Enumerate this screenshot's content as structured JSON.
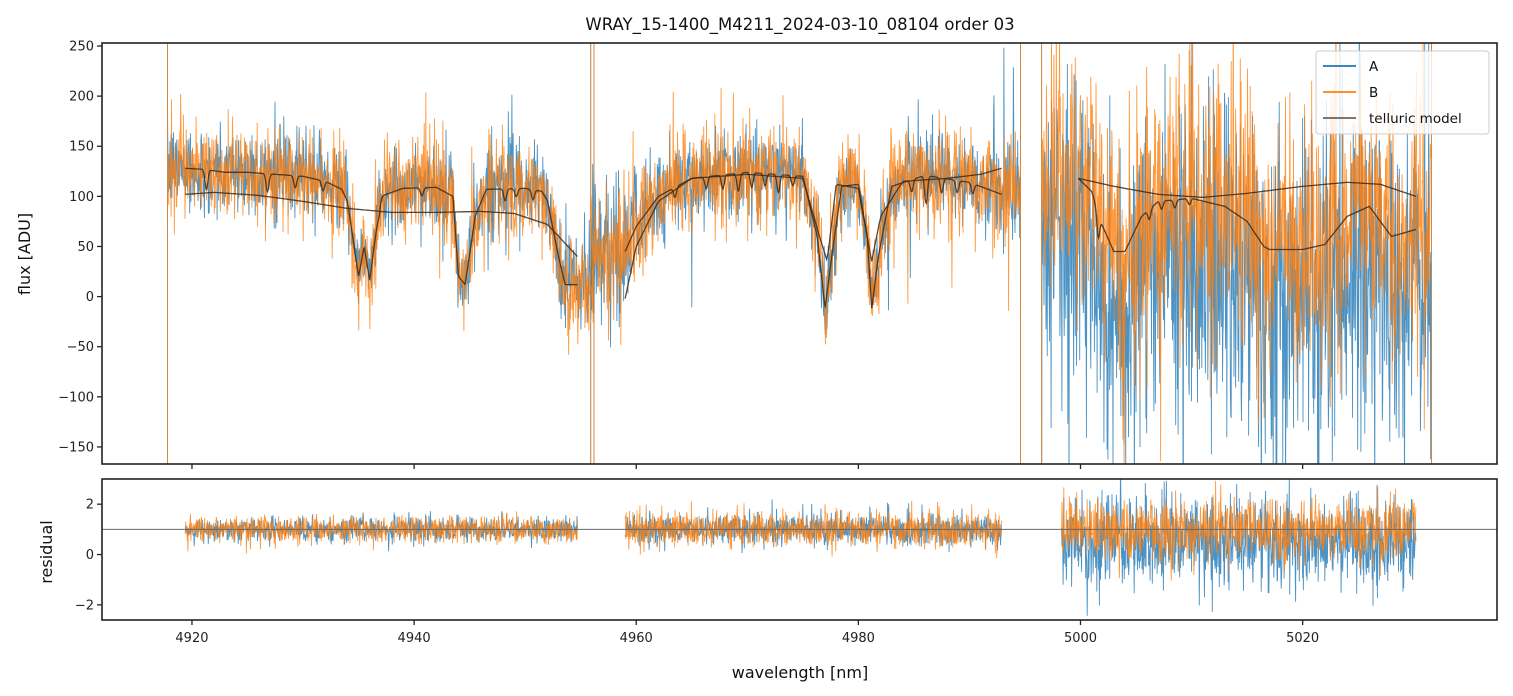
{
  "chart_data": [
    {
      "type": "line",
      "panel": "flux",
      "title": "WRAY_15-1400_M4211_2024-03-10_08104  order 03",
      "xlabel": "",
      "ylabel": "flux [ADU]",
      "xlim": [
        4911.9,
        5037.5
      ],
      "ylim": [
        -167,
        253
      ],
      "yticks": [
        250,
        200,
        150,
        100,
        50,
        0,
        -50,
        -100,
        -150
      ],
      "ytick_labels": [
        "250",
        "200",
        "150",
        "100",
        "50",
        "0",
        "−50",
        "−100",
        "−150"
      ],
      "xticks": [
        4920,
        4940,
        4960,
        4980,
        5000,
        5020
      ],
      "grid": false,
      "legend": {
        "position": "top-right",
        "entries": [
          {
            "label": "A",
            "color": "#1f77b4"
          },
          {
            "label": "B",
            "color": "#ff7f0e"
          },
          {
            "label": "telluric model",
            "color": "#4a3f35"
          }
        ]
      },
      "series": [
        {
          "name": "A",
          "color": "#1f77b4",
          "kind": "noisy spectrum"
        },
        {
          "name": "B",
          "color": "#ff7f0e",
          "kind": "noisy spectrum"
        },
        {
          "name": "telluric model",
          "color": "#3a2a1a",
          "kind": "model"
        }
      ],
      "segments": [
        {
          "x_range": [
            4917.8,
            4956.2
          ],
          "model_x_range": [
            4919.4,
            4954.7
          ],
          "continuum": [
            [
              4919.4,
              102
            ],
            [
              4922,
              104
            ],
            [
              4926,
              101
            ],
            [
              4930,
              95
            ],
            [
              4934,
              88
            ],
            [
              4938,
              84
            ],
            [
              4942,
              84
            ],
            [
              4946,
              85
            ],
            [
              4949,
              83
            ],
            [
              4952,
              72
            ],
            [
              4954.7,
              40
            ]
          ],
          "telluric": [
            [
              4919.4,
              128
            ],
            [
              4921,
              127
            ],
            [
              4923,
              124
            ],
            [
              4925,
              124
            ],
            [
              4930,
              120
            ],
            [
              4932,
              115
            ],
            [
              4933.5,
              107
            ],
            [
              4934,
              95
            ],
            [
              4935,
              20
            ],
            [
              4935.5,
              50
            ],
            [
              4936,
              16
            ],
            [
              4937,
              100
            ],
            [
              4939,
              108
            ],
            [
              4942,
              109
            ],
            [
              4943.5,
              100
            ],
            [
              4944,
              20
            ],
            [
              4944.6,
              12
            ],
            [
              4945.5,
              80
            ],
            [
              4946.5,
              107
            ],
            [
              4950,
              108
            ],
            [
              4951.5,
              105
            ],
            [
              4952,
              96
            ],
            [
              4953,
              40
            ],
            [
              4953.6,
              12
            ],
            [
              4954.7,
              12
            ]
          ],
          "lines": [
            [
              4921.3,
              20
            ],
            [
              4926.8,
              18
            ],
            [
              4929.3,
              12
            ],
            [
              4931.8,
              10
            ],
            [
              4936.9,
              8
            ],
            [
              4940.7,
              8
            ],
            [
              4948.2,
              12
            ],
            [
              4949.2,
              8
            ],
            [
              4950.7,
              10
            ]
          ]
        },
        {
          "x_range": [
            4955.9,
            4994.6
          ],
          "model_x_range": [
            4959.0,
            4992.9
          ],
          "continuum": [
            [
              4959,
              -2
            ],
            [
              4960,
              50
            ],
            [
              4962,
              95
            ],
            [
              4965,
              118
            ],
            [
              4970,
              122
            ],
            [
              4975,
              118
            ],
            [
              4976.5,
              60
            ],
            [
              4977.2,
              35
            ],
            [
              4978,
              112
            ],
            [
              4980,
              108
            ],
            [
              4981.2,
              35
            ],
            [
              4982,
              80
            ],
            [
              4984,
              115
            ],
            [
              4988,
              118
            ],
            [
              4991,
              122
            ],
            [
              4992.9,
              128
            ]
          ],
          "telluric": [
            [
              4959,
              45
            ],
            [
              4960,
              70
            ],
            [
              4962,
              100
            ],
            [
              4965,
              118
            ],
            [
              4970,
              124
            ],
            [
              4975,
              120
            ],
            [
              4976.3,
              60
            ],
            [
              4977,
              -12
            ],
            [
              4977.6,
              40
            ],
            [
              4978.5,
              110
            ],
            [
              4980,
              112
            ],
            [
              4980.8,
              60
            ],
            [
              4981.2,
              -12
            ],
            [
              4981.8,
              40
            ],
            [
              4983,
              110
            ],
            [
              4986,
              121
            ],
            [
              4990,
              114
            ],
            [
              4992.9,
              102
            ]
          ],
          "lines": [
            [
              4963.5,
              10
            ],
            [
              4966.3,
              12
            ],
            [
              4967.8,
              14
            ],
            [
              4969.2,
              18
            ],
            [
              4970.4,
              15
            ],
            [
              4971.6,
              12
            ],
            [
              4972.8,
              18
            ],
            [
              4974.1,
              10
            ],
            [
              4984.8,
              12
            ],
            [
              4986.1,
              28
            ],
            [
              4987.5,
              15
            ],
            [
              4988.9,
              12
            ],
            [
              4990.3,
              10
            ]
          ]
        },
        {
          "x_range": [
            4996.5,
            5031.6
          ],
          "model_x_range": [
            4999.8,
            5030.2
          ],
          "continuum": [
            [
              4999.8,
              118
            ],
            [
              5003,
              110
            ],
            [
              5007,
              102
            ],
            [
              5011,
              99
            ],
            [
              5015,
              103
            ],
            [
              5020,
              110
            ],
            [
              5024,
              114
            ],
            [
              5027,
              112
            ],
            [
              5030.2,
              100
            ]
          ],
          "telluric": [
            [
              4999.8,
              118
            ],
            [
              5001,
              105
            ],
            [
              5002,
              70
            ],
            [
              5003,
              45
            ],
            [
              5004,
              45
            ],
            [
              5005.5,
              80
            ],
            [
              5007,
              95
            ],
            [
              5010,
              98
            ],
            [
              5013,
              90
            ],
            [
              5015,
              75
            ],
            [
              5016.5,
              50
            ],
            [
              5017,
              47
            ],
            [
              5020,
              47
            ],
            [
              5022,
              52
            ],
            [
              5024,
              80
            ],
            [
              5026,
              90
            ],
            [
              5028,
              60
            ],
            [
              5030.2,
              67
            ]
          ],
          "lines": [
            [
              5001.6,
              25
            ],
            [
              5006.2,
              10
            ],
            [
              5007.3,
              8
            ],
            [
              5008.5,
              8
            ],
            [
              5009.8,
              6
            ]
          ]
        }
      ]
    },
    {
      "type": "line",
      "panel": "residual",
      "xlabel": "wavelength [nm]",
      "ylabel": "residual",
      "xlim": [
        4911.9,
        5037.5
      ],
      "ylim": [
        -2.6,
        3.0
      ],
      "yticks": [
        2,
        0,
        -2
      ],
      "ytick_labels": [
        "2",
        "0",
        "−2"
      ],
      "xticks": [
        4920,
        4940,
        4960,
        4980,
        5000,
        5020
      ],
      "xtick_labels": [
        "4920",
        "4940",
        "4960",
        "4980",
        "5000",
        "5020"
      ],
      "reference_line": 1.0,
      "grid": false,
      "series": [
        {
          "name": "A",
          "color": "#1f77b4"
        },
        {
          "name": "B",
          "color": "#ff7f0e"
        }
      ],
      "segments": [
        {
          "x_range": [
            4919.4,
            4954.7
          ],
          "noise_A": 0.35,
          "noise_B": 0.4
        },
        {
          "x_range": [
            4959.0,
            4992.9
          ],
          "noise_A": 0.45,
          "noise_B": 0.5
        },
        {
          "x_range": [
            4998.3,
            5030.2
          ],
          "noise_A": 1.3,
          "noise_B": 0.9
        }
      ]
    }
  ]
}
